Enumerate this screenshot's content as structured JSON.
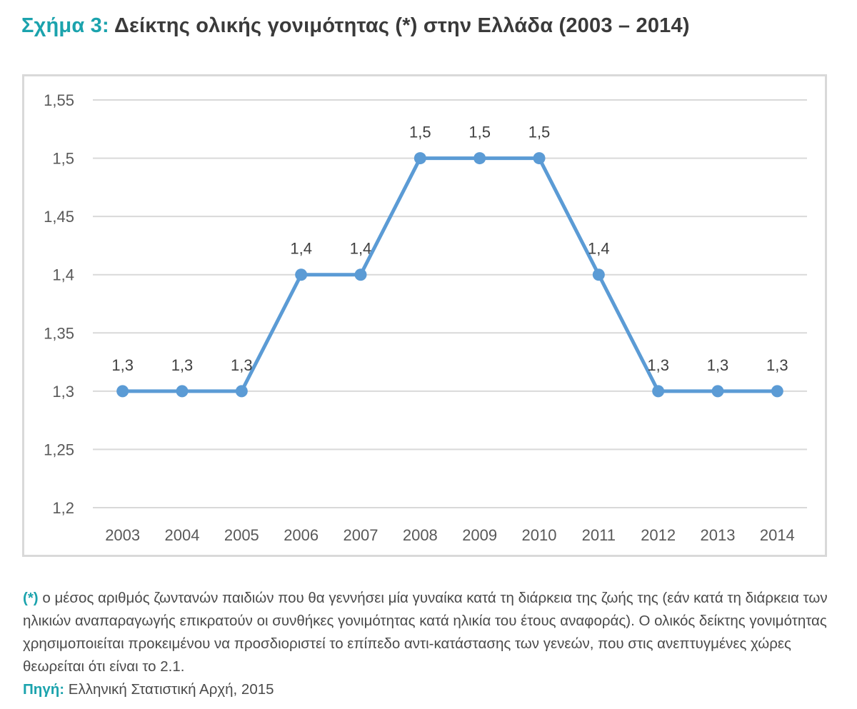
{
  "header": {
    "figure_label": "Σχήμα 3:",
    "title": "Δείκτης ολικής γονιμότητας (*) στην Ελλάδα (2003 – 2014)"
  },
  "colors": {
    "accent": "#1ba3ad",
    "series": "#5b9bd5",
    "grid": "#d9d9d9",
    "frame": "#d9d9d9"
  },
  "chart_data": {
    "type": "line",
    "title": "",
    "xlabel": "",
    "ylabel": "",
    "categories": [
      "2003",
      "2004",
      "2005",
      "2006",
      "2007",
      "2008",
      "2009",
      "2010",
      "2011",
      "2012",
      "2013",
      "2014"
    ],
    "series": [
      {
        "values": [
          1.3,
          1.3,
          1.3,
          1.4,
          1.4,
          1.5,
          1.5,
          1.5,
          1.4,
          1.3,
          1.3,
          1.3
        ],
        "data_labels": [
          "1,3",
          "1,3",
          "1,3",
          "1,4",
          "1,4",
          "1,5",
          "1,5",
          "1,5",
          "1,4",
          "1,3",
          "1,3",
          "1,3"
        ]
      }
    ],
    "ylim": [
      1.2,
      1.55
    ],
    "yticks": [
      1.2,
      1.25,
      1.3,
      1.35,
      1.4,
      1.45,
      1.5,
      1.55
    ],
    "ytick_labels": [
      "1,2",
      "1,25",
      "1,3",
      "1,35",
      "1,4",
      "1,45",
      "1,5",
      "1,55"
    ],
    "grid": true,
    "legend": "none"
  },
  "footnote": {
    "marker": "(*)",
    "text": "ο μέσος αριθμός ζωντανών παιδιών που θα γεννήσει μία γυναίκα κατά τη διάρκεια  της ζωής της (εάν κατά τη διάρκεια των ηλικιών αναπαραγωγής επικρατούν οι συνθήκες γονιμότητας κατά ηλικία του έτους αναφοράς). Ο ολικός δείκτης γονιμότητας χρησιμοποιείται προκειμένου να προσδιοριστεί το επίπεδο αντι-κατάστασης των γενεών, που στις ανεπτυγμένες χώρες θεωρείται ότι είναι το 2.1.",
    "source_label": "Πηγή:",
    "source_text": "Ελληνική Στατιστική Αρχή, 2015"
  }
}
